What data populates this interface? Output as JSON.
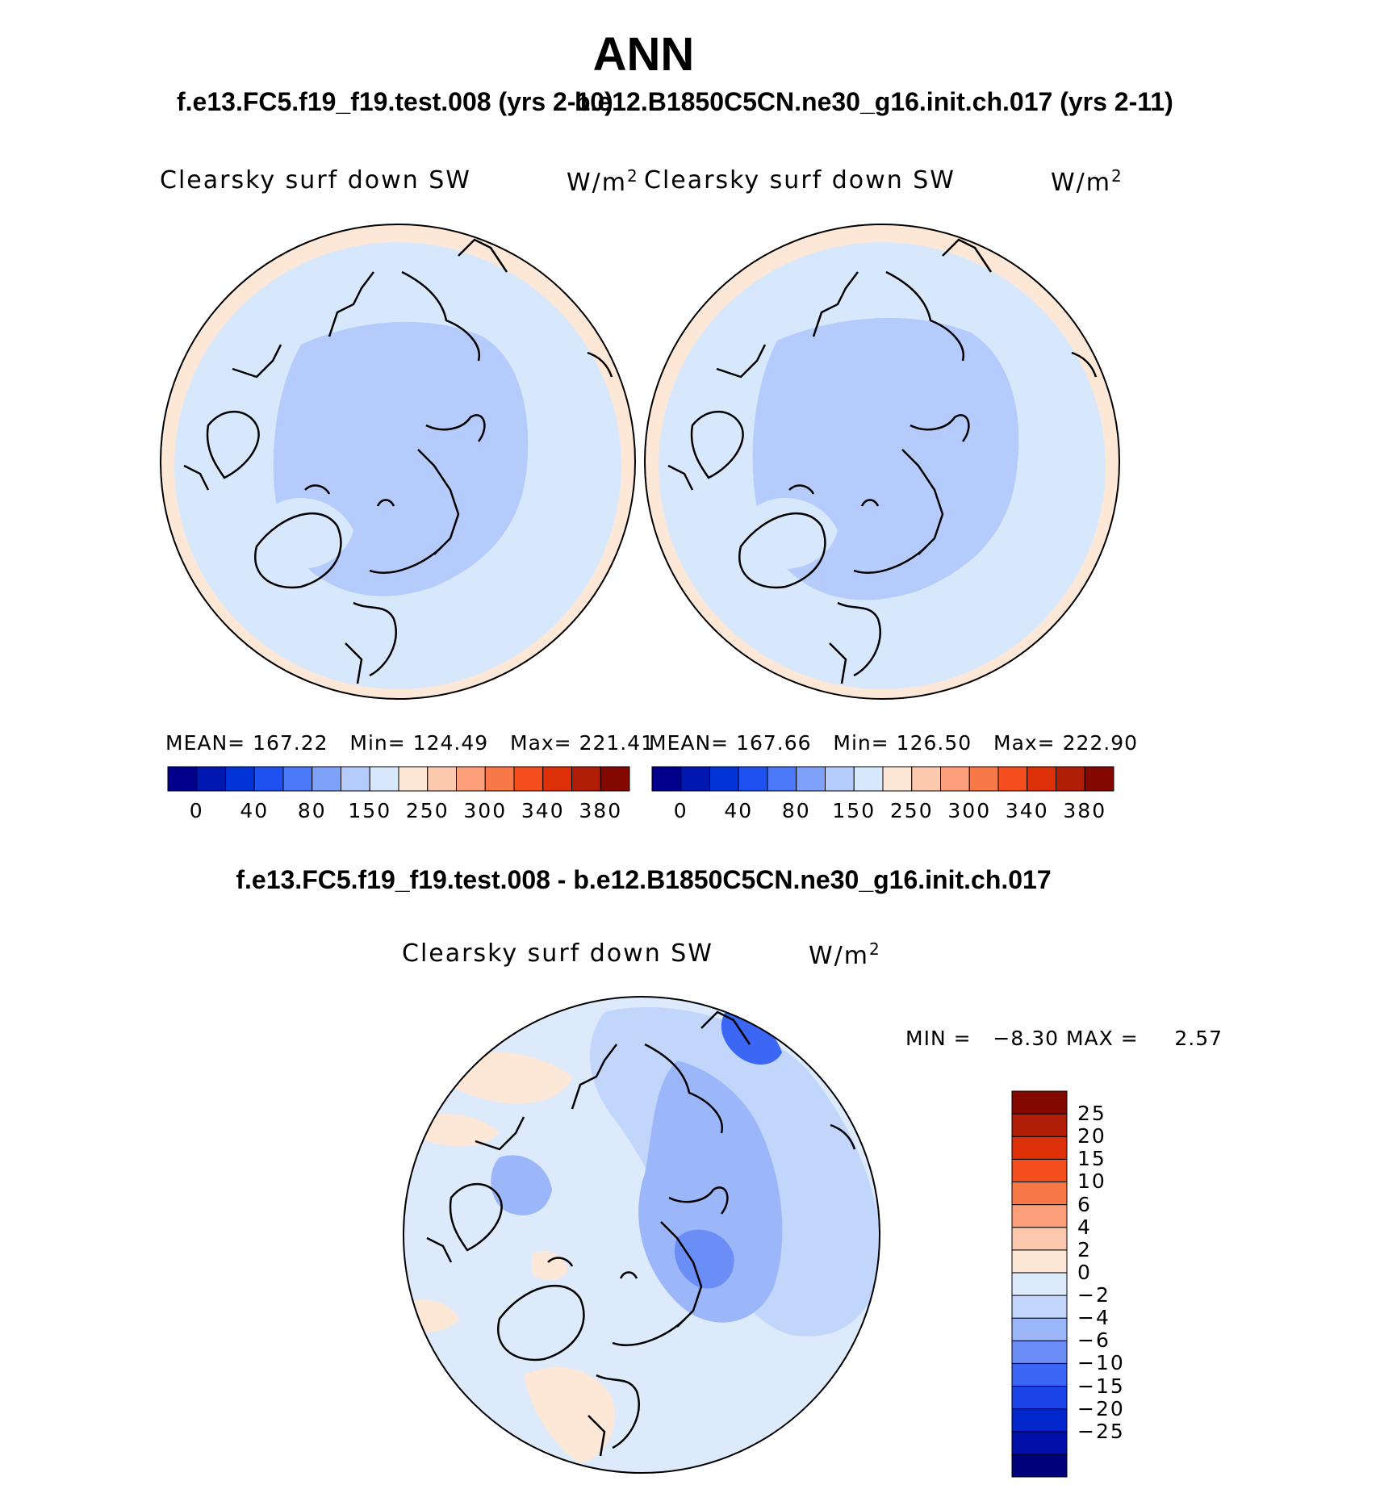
{
  "chart_data": [
    {
      "type": "heatmap",
      "title": "ANN",
      "subtitle": "f.e13.FC5.f19_f19.test.008 (yrs 2-10)",
      "variable": "Clearsky surf down SW",
      "units": "W/m",
      "units_superscript": "2",
      "projection": "north polar stereographic",
      "stats": {
        "mean_label": "MEAN=",
        "mean": "167.22",
        "min_label": "Min=",
        "min": "124.49",
        "max_label": "Max=",
        "max": "221.41"
      },
      "colorbar": {
        "colors": [
          "#00008c",
          "#0018b0",
          "#0034d6",
          "#1e52f0",
          "#4a78f6",
          "#7ea2f8",
          "#b4cbfb",
          "#d8e8fc",
          "#fde8d8",
          "#fcc8ae",
          "#fba07a",
          "#f87848",
          "#f44e1e",
          "#de3008",
          "#b01e08",
          "#820800"
        ],
        "tick_labels": [
          "0",
          "40",
          "80",
          "150",
          "250",
          "300",
          "340",
          "380"
        ]
      }
    },
    {
      "type": "heatmap",
      "subtitle": "b.e12.B1850C5CN.ne30_g16.init.ch.017 (yrs 2-11)",
      "variable": "Clearsky surf down SW",
      "units": "W/m",
      "units_superscript": "2",
      "projection": "north polar stereographic",
      "stats": {
        "mean_label": "MEAN=",
        "mean": "167.66",
        "min_label": "Min=",
        "min": "126.50",
        "max_label": "Max=",
        "max": "222.90"
      },
      "colorbar": {
        "colors": [
          "#00008c",
          "#0018b0",
          "#0034d6",
          "#1e52f0",
          "#4a78f6",
          "#7ea2f8",
          "#b4cbfb",
          "#d8e8fc",
          "#fde8d8",
          "#fcc8ae",
          "#fba07a",
          "#f87848",
          "#f44e1e",
          "#de3008",
          "#b01e08",
          "#820800"
        ],
        "tick_labels": [
          "0",
          "40",
          "80",
          "150",
          "250",
          "300",
          "340",
          "380"
        ]
      }
    },
    {
      "type": "heatmap",
      "title": "f.e13.FC5.f19_f19.test.008 - b.e12.B1850C5CN.ne30_g16.init.ch.017",
      "variable": "Clearsky surf down SW",
      "units": "W/m",
      "units_superscript": "2",
      "projection": "north polar stereographic",
      "stats": {
        "min_label": "MIN =",
        "min": "−8.30",
        "max_label": "MAX =",
        "max": "2.57"
      },
      "colorbar": {
        "colors_bottom_to_top": [
          "#00007a",
          "#0010a8",
          "#0026cc",
          "#1a44e8",
          "#3c66f4",
          "#6a8ef6",
          "#9bb6f9",
          "#c2d6fb",
          "#ddeafc",
          "#fde8d8",
          "#fcc8ae",
          "#fba07a",
          "#f87848",
          "#f44e1e",
          "#de3008",
          "#b01e08",
          "#820800"
        ],
        "tick_labels_top_to_bottom": [
          "25",
          "20",
          "15",
          "10",
          "6",
          "4",
          "2",
          "0",
          "−2",
          "−4",
          "−6",
          "−10",
          "−15",
          "−20",
          "−25"
        ]
      }
    }
  ]
}
